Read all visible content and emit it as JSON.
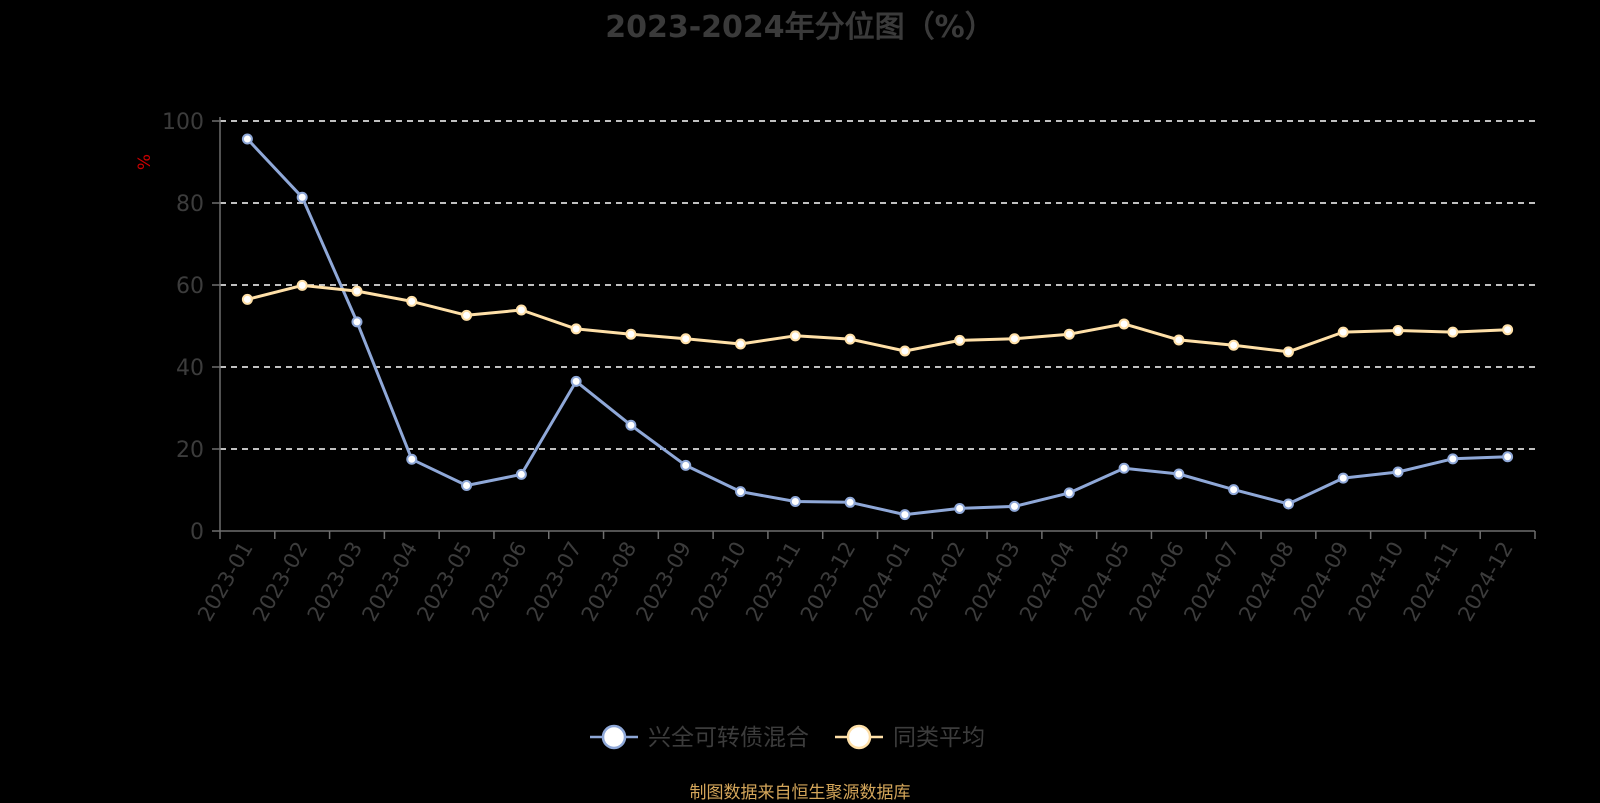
{
  "chart_data": {
    "type": "line",
    "title": "2023-2024年分位图（%）",
    "ylabel": "%",
    "xlabel": "",
    "ylim": [
      0,
      100
    ],
    "yticks": [
      0,
      20,
      40,
      60,
      80,
      100
    ],
    "grid": true,
    "legend_position": "bottom-center",
    "categories": [
      "2023-01",
      "2023-02",
      "2023-03",
      "2023-04",
      "2023-05",
      "2023-06",
      "2023-07",
      "2023-08",
      "2023-09",
      "2023-10",
      "2023-11",
      "2023-12",
      "2024-01",
      "2024-02",
      "2024-03",
      "2024-04",
      "2024-05",
      "2024-06",
      "2024-07",
      "2024-08",
      "2024-09",
      "2024-10",
      "2024-11",
      "2024-12"
    ],
    "series": [
      {
        "name": "兴全可转债混合",
        "color": "#8fa8d8",
        "values": [
          95.6,
          81.4,
          51.0,
          17.5,
          11.1,
          13.8,
          36.5,
          25.8,
          16.0,
          9.6,
          7.2,
          7.0,
          4.0,
          5.5,
          6.0,
          9.3,
          15.3,
          13.9,
          10.1,
          6.6,
          12.9,
          14.4,
          17.6,
          18.1
        ]
      },
      {
        "name": "同类平均",
        "color": "#ffe0a8",
        "values": [
          56.5,
          59.9,
          58.5,
          56.0,
          52.6,
          53.9,
          49.3,
          48.0,
          46.9,
          45.6,
          47.6,
          46.8,
          43.9,
          46.5,
          46.9,
          48.0,
          50.5,
          46.6,
          45.3,
          43.7,
          48.5,
          48.9,
          48.5,
          49.1
        ]
      }
    ]
  },
  "source_text": "制图数据来自恒生聚源数据库",
  "colors": {
    "background": "#000000",
    "grid": "#ffffff",
    "axis": "#6e6e6e",
    "tick_label": "#3c3c3c",
    "title": "#3a3a3a",
    "ylabel": "#cc0000",
    "source": "#d4a65a"
  }
}
